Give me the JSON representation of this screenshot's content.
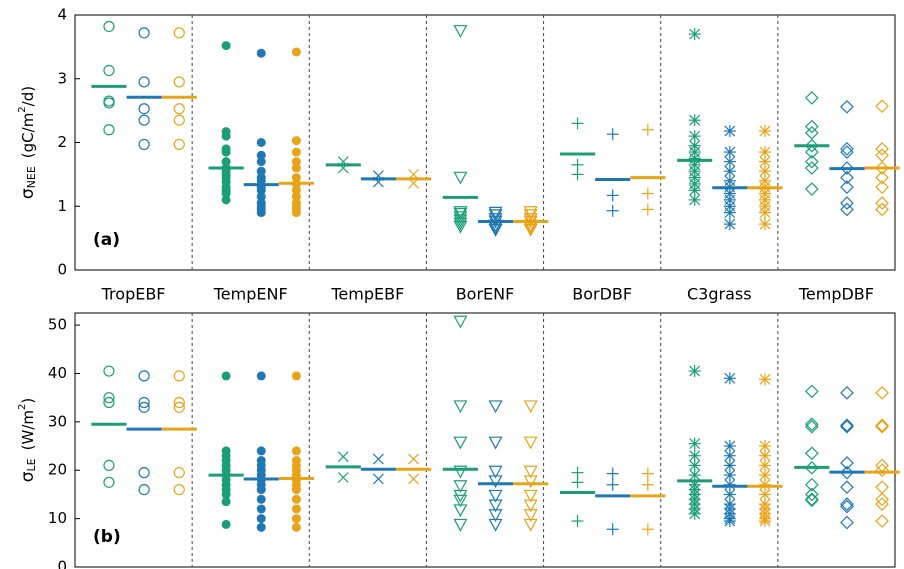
{
  "chart_data": [
    {
      "type": "strip",
      "panel_label": "(a)",
      "y_label": {
        "symbol": "σ",
        "subscript": "NEE",
        "unit_prefix": "(gC/m",
        "unit_exponent": "2",
        "unit_suffix": "/d)"
      },
      "categories": [
        "TropEBF",
        "TempENF",
        "TempEBF",
        "BorENF",
        "BorDBF",
        "C3grass",
        "TempDBF"
      ],
      "markers": [
        "circle",
        "dot",
        "x",
        "triangle-down",
        "plus",
        "asterisk",
        "diamond"
      ],
      "ylim": [
        0,
        4
      ],
      "yticks": [
        0,
        1,
        2,
        3,
        4
      ],
      "series": [
        {
          "color": "#1b9e77",
          "means": [
            2.88,
            1.6,
            1.65,
            1.14,
            1.82,
            1.72,
            1.95
          ],
          "values": [
            [
              3.82,
              3.13,
              2.65,
              2.62,
              2.2
            ],
            [
              3.52,
              2.17,
              2.1,
              1.9,
              1.85,
              1.7,
              1.6,
              1.55,
              1.5,
              1.45,
              1.38,
              1.3,
              1.25,
              1.2,
              1.1
            ],
            [
              1.7,
              1.6
            ],
            [
              3.77,
              1.47,
              0.93,
              0.9,
              0.85,
              0.8,
              0.75,
              0.7
            ],
            [
              2.3,
              1.65,
              1.5
            ],
            [
              3.7,
              2.35,
              2.1,
              1.95,
              1.85,
              1.75,
              1.65,
              1.55,
              1.45,
              1.35,
              1.25,
              1.1
            ],
            [
              2.7,
              2.25,
              2.15,
              1.95,
              1.85,
              1.7,
              1.6,
              1.27
            ]
          ]
        },
        {
          "color": "#1f78b4",
          "means": [
            2.71,
            1.34,
            1.43,
            0.76,
            1.42,
            1.29,
            1.59
          ],
          "values": [
            [
              3.72,
              2.95,
              2.53,
              2.35,
              1.97
            ],
            [
              3.4,
              2.0,
              1.8,
              1.7,
              1.55,
              1.45,
              1.4,
              1.3,
              1.25,
              1.15,
              1.05,
              1.0,
              0.95,
              0.9
            ],
            [
              1.48,
              1.38
            ],
            [
              0.92,
              0.88,
              0.82,
              0.78,
              0.72,
              0.68,
              0.65
            ],
            [
              2.13,
              1.17,
              0.93
            ],
            [
              2.18,
              1.85,
              1.7,
              1.55,
              1.4,
              1.3,
              1.2,
              1.1,
              1.0,
              0.9,
              0.72
            ],
            [
              2.56,
              1.9,
              1.85,
              1.6,
              1.45,
              1.3,
              1.05,
              0.95
            ]
          ]
        },
        {
          "color": "#e8a317",
          "means": [
            2.71,
            1.36,
            1.43,
            0.76,
            1.45,
            1.29,
            1.6
          ],
          "values": [
            [
              3.72,
              2.95,
              2.53,
              2.35,
              1.97
            ],
            [
              3.42,
              2.03,
              1.85,
              1.7,
              1.6,
              1.45,
              1.35,
              1.25,
              1.15,
              1.05,
              1.0,
              0.95,
              0.9
            ],
            [
              1.5,
              1.36
            ],
            [
              0.93,
              0.88,
              0.82,
              0.78,
              0.72,
              0.68,
              0.65
            ],
            [
              2.2,
              1.2,
              0.95
            ],
            [
              2.18,
              1.85,
              1.7,
              1.55,
              1.4,
              1.3,
              1.2,
              1.1,
              1.0,
              0.9,
              0.72
            ],
            [
              2.57,
              1.9,
              1.8,
              1.6,
              1.45,
              1.3,
              1.05,
              0.95
            ]
          ]
        }
      ]
    },
    {
      "type": "strip",
      "panel_label": "(b)",
      "y_label": {
        "symbol": "σ",
        "subscript": "LE",
        "unit_prefix": "(W/m",
        "unit_exponent": "2",
        "unit_suffix": ")"
      },
      "categories": [
        null,
        null,
        null,
        null,
        null,
        null,
        null
      ],
      "markers": [
        "circle",
        "dot",
        "x",
        "triangle-down",
        "plus",
        "asterisk",
        "diamond"
      ],
      "ylim": [
        0,
        52.5
      ],
      "yticks": [
        0,
        10,
        20,
        30,
        40,
        50
      ],
      "series": [
        {
          "color": "#1b9e77",
          "means": [
            29.5,
            19,
            20.7,
            20.2,
            15.4,
            17.8,
            20.6
          ],
          "values": [
            [
              40.5,
              35,
              34,
              21,
              17.5
            ],
            [
              39.5,
              24,
              23,
              22,
              21,
              20,
              19,
              18,
              17,
              16,
              15,
              13.5,
              8.8
            ],
            [
              22.8,
              18.5
            ],
            [
              51,
              33.5,
              26,
              20,
              17,
              15,
              14,
              12,
              9
            ],
            [
              19.5,
              17.5,
              9.5
            ],
            [
              40.5,
              25.5,
              23,
              21,
              19,
              17,
              16,
              15,
              14,
              13,
              12,
              11
            ],
            [
              36.3,
              29.5,
              29,
              23.5,
              20.5,
              17,
              15,
              14,
              13.8
            ]
          ]
        },
        {
          "color": "#1f78b4",
          "means": [
            28.5,
            18.2,
            20.2,
            17.2,
            14.7,
            16.7,
            19.6
          ],
          "values": [
            [
              39.5,
              34,
              33,
              19.5,
              16
            ],
            [
              39.5,
              24,
              22,
              21,
              20,
              19,
              18,
              17,
              16,
              14,
              12,
              10,
              8.2
            ],
            [
              22.3,
              18.2
            ],
            [
              33.5,
              26,
              20,
              18,
              15,
              13,
              11,
              9
            ],
            [
              19.3,
              17,
              7.8
            ],
            [
              39,
              25,
              23,
              21,
              19,
              17,
              15,
              13,
              12,
              11,
              10,
              9.5
            ],
            [
              36,
              29.3,
              29,
              21.5,
              19.5,
              16.5,
              13,
              12.5,
              9.2
            ]
          ]
        },
        {
          "color": "#e8a317",
          "means": [
            28.5,
            18.3,
            20.2,
            17.2,
            14.7,
            16.7,
            19.6
          ],
          "values": [
            [
              39.5,
              34,
              33,
              19.5,
              16
            ],
            [
              39.5,
              24,
              22,
              21,
              20,
              19,
              18,
              17,
              16,
              14,
              12,
              10,
              8.2
            ],
            [
              22.3,
              18.2
            ],
            [
              33.5,
              26,
              20,
              18,
              15,
              13,
              11,
              9
            ],
            [
              19.3,
              17,
              7.8
            ],
            [
              38.8,
              25,
              23,
              21,
              19,
              17,
              15,
              13,
              12,
              11,
              10,
              9.5
            ],
            [
              36,
              29.3,
              29,
              21,
              20,
              16.5,
              14,
              13,
              9.5
            ]
          ]
        }
      ]
    }
  ]
}
